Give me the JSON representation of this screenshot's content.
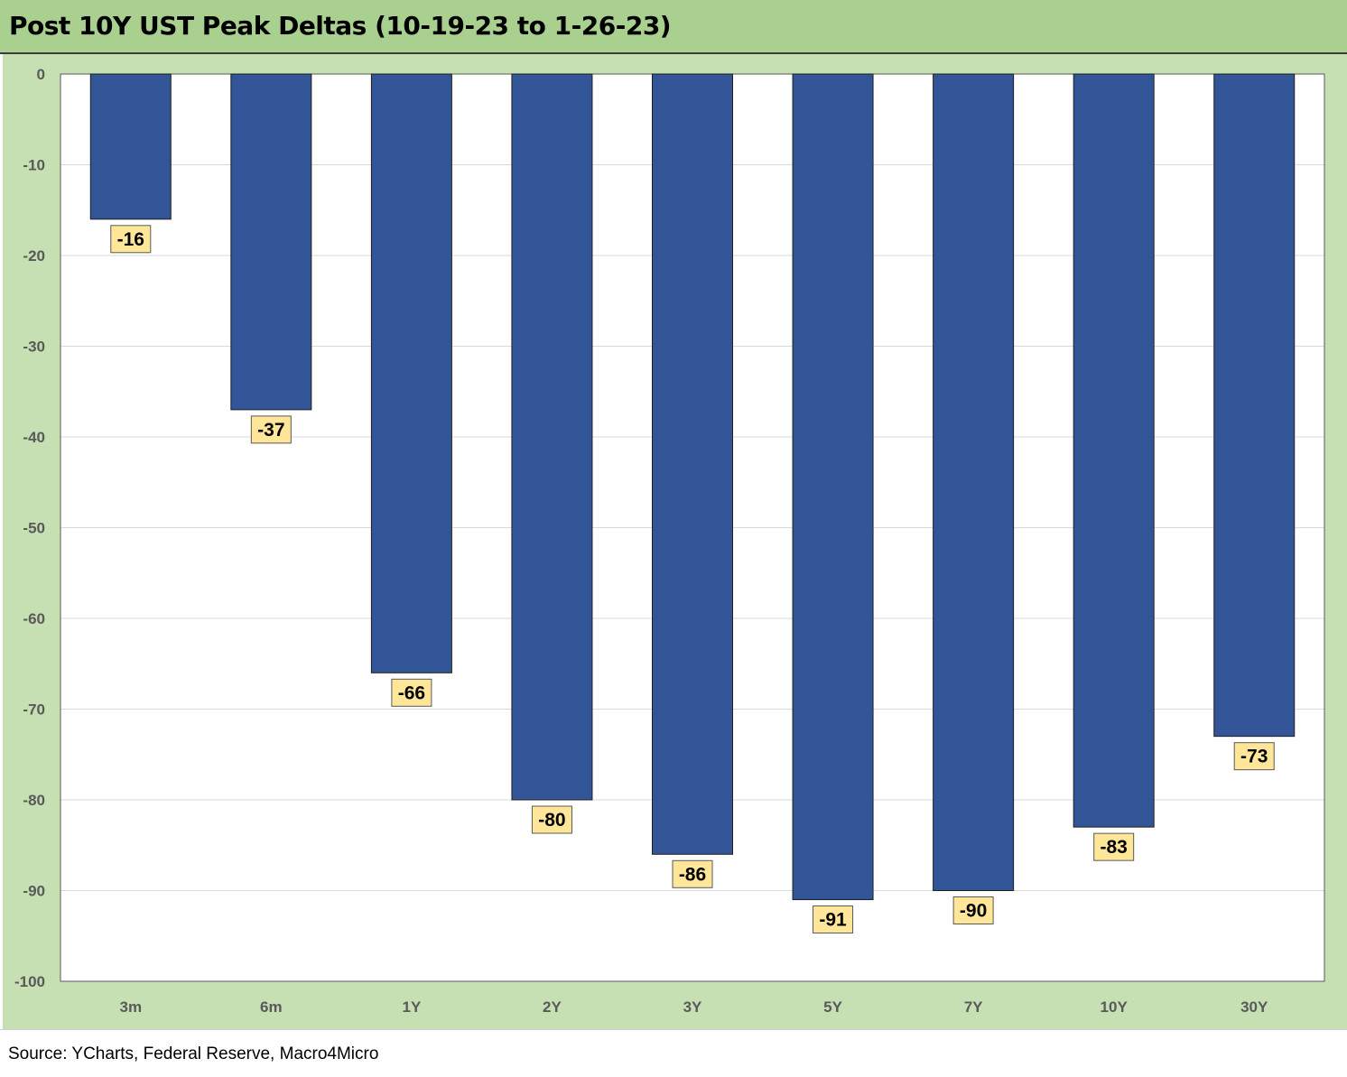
{
  "title": "Post 10Y UST Peak Deltas (10-19-23 to 1-26-23)",
  "source": "Source: YCharts, Federal Reserve, Macro4Micro",
  "colors": {
    "bar": "#325597",
    "label_bg": "#ffe699",
    "panel": "#c6e0b4",
    "header": "#a9d08e"
  },
  "chart_data": {
    "type": "bar",
    "categories": [
      "3m",
      "6m",
      "1Y",
      "2Y",
      "3Y",
      "5Y",
      "7Y",
      "10Y",
      "30Y"
    ],
    "values": [
      -16,
      -37,
      -66,
      -80,
      -86,
      -91,
      -90,
      -83,
      -73
    ],
    "data_labels": [
      "-16",
      "-37",
      "-66",
      "-80",
      "-86",
      "-91",
      "-90",
      "-83",
      "-73"
    ],
    "y_ticks": [
      "0",
      "-10",
      "-20",
      "-30",
      "-40",
      "-50",
      "-60",
      "-70",
      "-80",
      "-90",
      "-100"
    ],
    "ylim": [
      -100,
      0
    ],
    "grid": true,
    "legend": "none"
  }
}
